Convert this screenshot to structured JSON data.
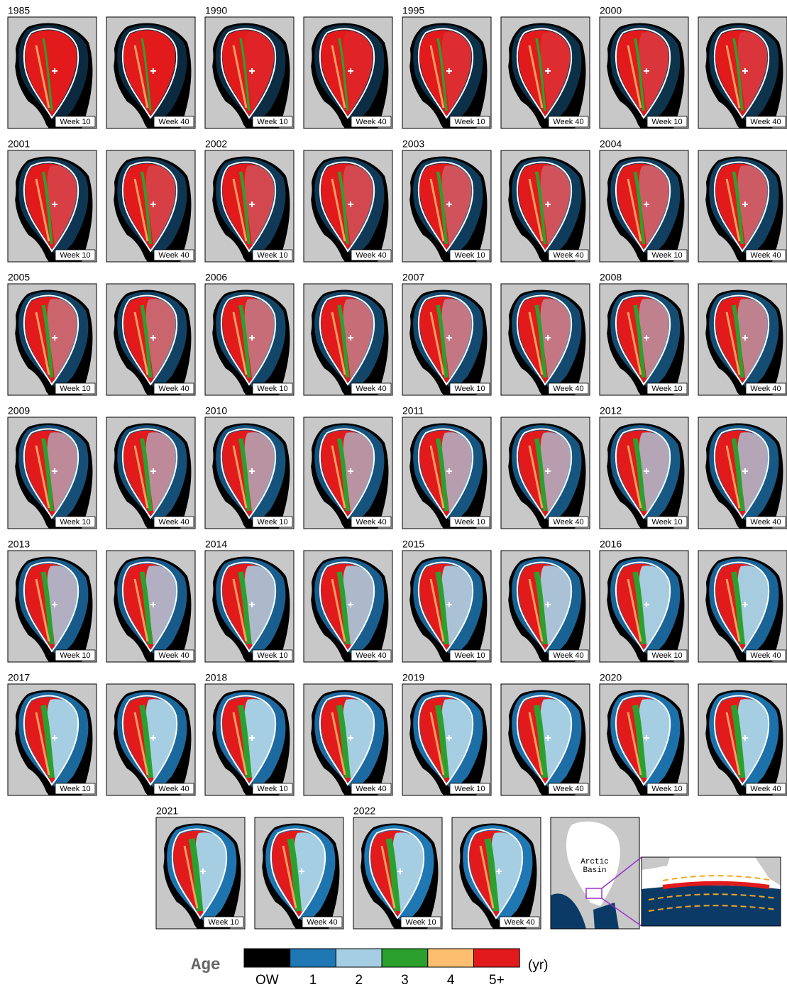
{
  "panels": [
    {
      "year": "1985",
      "maps": [
        "Week 10",
        "Week 40"
      ]
    },
    {
      "year": "1990",
      "maps": [
        "Week 10",
        "Week 40"
      ]
    },
    {
      "year": "1995",
      "maps": [
        "Week 10",
        "Week 40"
      ]
    },
    {
      "year": "2000",
      "maps": [
        "Week 10",
        "Week 40"
      ]
    },
    {
      "year": "2001",
      "maps": [
        "Week 10",
        "Week 40"
      ]
    },
    {
      "year": "2002",
      "maps": [
        "Week 10",
        "Week 40"
      ]
    },
    {
      "year": "2003",
      "maps": [
        "Week 10",
        "Week 40"
      ]
    },
    {
      "year": "2004",
      "maps": [
        "Week 10",
        "Week 40"
      ]
    },
    {
      "year": "2005",
      "maps": [
        "Week 10",
        "Week 40"
      ]
    },
    {
      "year": "2006",
      "maps": [
        "Week 10",
        "Week 40"
      ]
    },
    {
      "year": "2007",
      "maps": [
        "Week 10",
        "Week 40"
      ]
    },
    {
      "year": "2008",
      "maps": [
        "Week 10",
        "Week 40"
      ]
    },
    {
      "year": "2009",
      "maps": [
        "Week 10",
        "Week 40"
      ]
    },
    {
      "year": "2010",
      "maps": [
        "Week 10",
        "Week 40"
      ]
    },
    {
      "year": "2011",
      "maps": [
        "Week 10",
        "Week 40"
      ]
    },
    {
      "year": "2012",
      "maps": [
        "Week 10",
        "Week 40"
      ]
    },
    {
      "year": "2013",
      "maps": [
        "Week 10",
        "Week 40"
      ]
    },
    {
      "year": "2014",
      "maps": [
        "Week 10",
        "Week 40"
      ]
    },
    {
      "year": "2015",
      "maps": [
        "Week 10",
        "Week 40"
      ]
    },
    {
      "year": "2016",
      "maps": [
        "Week 10",
        "Week 40"
      ]
    },
    {
      "year": "2017",
      "maps": [
        "Week 10",
        "Week 40"
      ]
    },
    {
      "year": "2018",
      "maps": [
        "Week 10",
        "Week 40"
      ]
    },
    {
      "year": "2019",
      "maps": [
        "Week 10",
        "Week 40"
      ]
    },
    {
      "year": "2020",
      "maps": [
        "Week 10",
        "Week 40"
      ]
    },
    {
      "year": "2021",
      "maps": [
        "Week 10",
        "Week 40"
      ]
    },
    {
      "year": "2022",
      "maps": [
        "Week 10",
        "Week 40"
      ]
    }
  ],
  "inset": {
    "label_lines": [
      "Arctic",
      "Basin"
    ]
  },
  "legend": {
    "title": "Age",
    "unit": "(yr)",
    "classes": [
      {
        "label": "OW",
        "color": "#000000"
      },
      {
        "label": "1",
        "color": "#1f77b4"
      },
      {
        "label": "2",
        "color": "#a6cee3"
      },
      {
        "label": "3",
        "color": "#2ca02c"
      },
      {
        "label": "4",
        "color": "#fdbf6f"
      },
      {
        "label": "5+",
        "color": "#e31a1c"
      }
    ]
  }
}
